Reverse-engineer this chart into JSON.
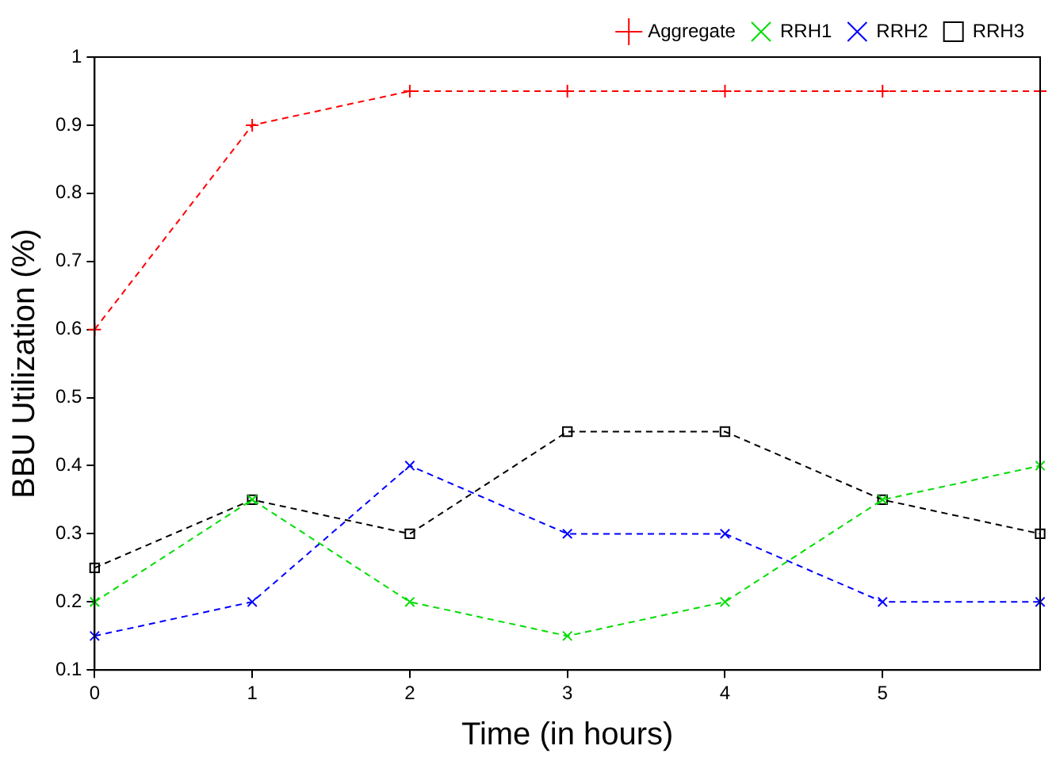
{
  "chart_data": {
    "type": "line",
    "xlabel": "Time (in hours)",
    "ylabel": "BBU Utilization (%)",
    "x": [
      0,
      1,
      2,
      3,
      4,
      5,
      6
    ],
    "xlim": [
      0,
      6
    ],
    "xticks": [
      0,
      1,
      2,
      3,
      4,
      5
    ],
    "ylim": [
      0.1,
      1
    ],
    "yticks": [
      0.1,
      0.2,
      0.3,
      0.4,
      0.5,
      0.6,
      0.7,
      0.8,
      0.9,
      1
    ],
    "grid": false,
    "legend": "top right",
    "line_style": "dashed",
    "series": [
      {
        "name": "Aggregate",
        "color": "#ff0000",
        "marker": "plus",
        "values": [
          0.6,
          0.9,
          0.95,
          0.95,
          0.95,
          0.95,
          0.95
        ]
      },
      {
        "name": "RRH1",
        "color": "#00dd00",
        "marker": "cross",
        "values": [
          0.2,
          0.35,
          0.2,
          0.15,
          0.2,
          0.35,
          0.4
        ]
      },
      {
        "name": "RRH2",
        "color": "#0000ff",
        "marker": "cross",
        "values": [
          0.15,
          0.2,
          0.4,
          0.3,
          0.3,
          0.2,
          0.2
        ]
      },
      {
        "name": "RRH3",
        "color": "#000000",
        "marker": "square",
        "values": [
          0.25,
          0.35,
          0.3,
          0.45,
          0.45,
          0.35,
          0.3
        ]
      }
    ]
  }
}
